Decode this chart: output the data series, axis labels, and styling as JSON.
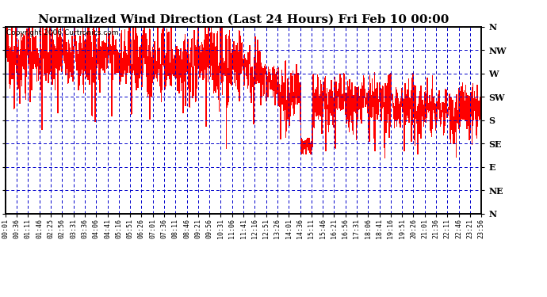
{
  "title": "Normalized Wind Direction (Last 24 Hours) Fri Feb 10 00:00",
  "copyright": "Copyright 2006 Curtronics.com",
  "y_labels": [
    "N",
    "NW",
    "W",
    "SW",
    "S",
    "SE",
    "E",
    "NE",
    "N"
  ],
  "y_values": [
    360,
    315,
    270,
    225,
    180,
    135,
    90,
    45,
    0
  ],
  "x_tick_labels": [
    "00:01",
    "00:36",
    "01:11",
    "01:46",
    "02:25",
    "02:56",
    "03:31",
    "03:36",
    "04:06",
    "04:41",
    "05:16",
    "05:51",
    "06:26",
    "07:01",
    "07:36",
    "08:11",
    "08:46",
    "09:21",
    "09:56",
    "10:31",
    "11:06",
    "11:41",
    "12:16",
    "12:51",
    "13:26",
    "14:01",
    "14:36",
    "15:11",
    "15:46",
    "16:21",
    "16:56",
    "17:31",
    "18:06",
    "18:41",
    "19:16",
    "19:51",
    "20:26",
    "21:01",
    "21:36",
    "22:11",
    "22:46",
    "23:21",
    "23:56"
  ],
  "line_color": "#ff0000",
  "background_color": "#ffffff",
  "grid_color": "#0000cc",
  "title_fontsize": 11,
  "copyright_fontsize": 6.5,
  "ylabel_fontsize": 8,
  "xlabel_fontsize": 6
}
